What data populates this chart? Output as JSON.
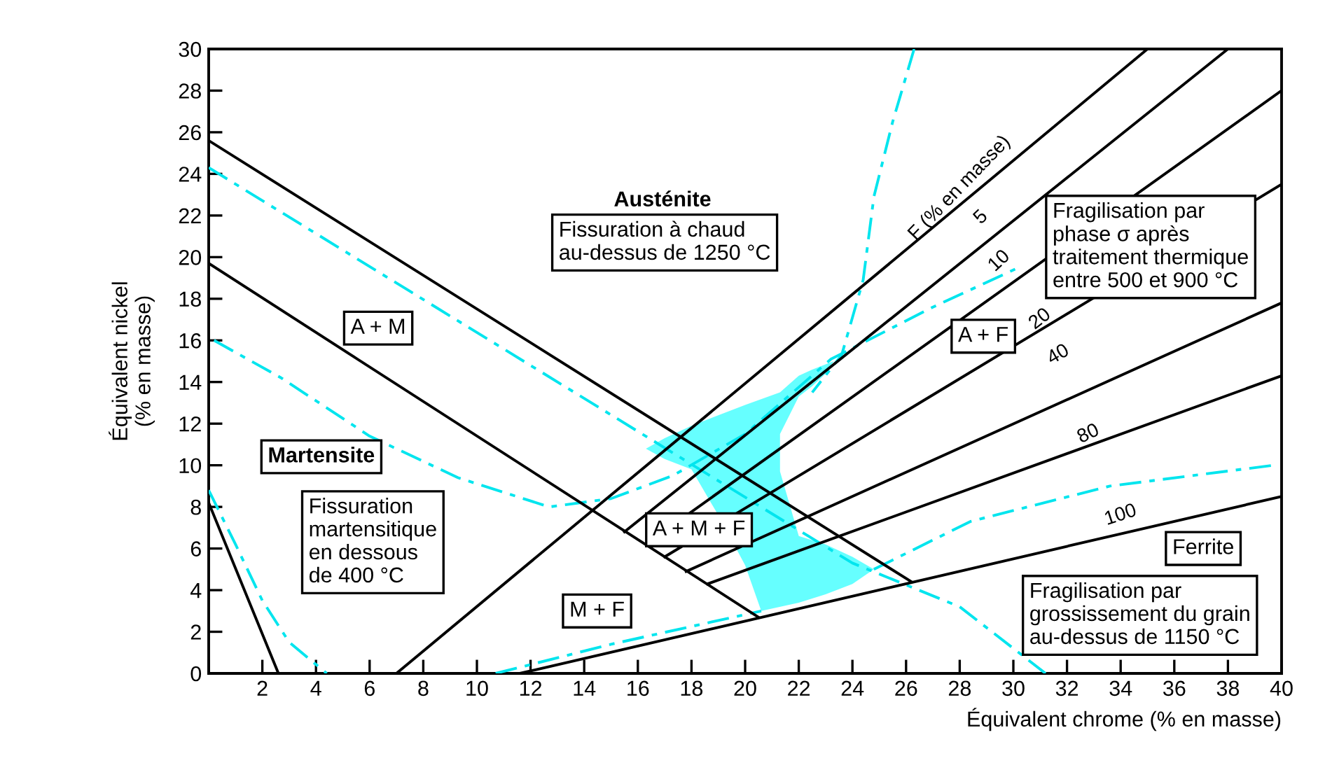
{
  "chart_data": {
    "type": "line",
    "xlabel": "Équivalent chrome (% en masse)",
    "ylabel": "Équivalent nickel\n(% en masse)",
    "xlim": [
      0,
      40
    ],
    "ylim": [
      0,
      30
    ],
    "xticks": [
      {
        "value": 0,
        "label": null
      },
      2,
      4,
      6,
      8,
      10,
      12,
      14,
      16,
      18,
      20,
      22,
      24,
      26,
      28,
      30,
      32,
      34,
      36,
      38,
      40
    ],
    "yticks": [
      0,
      2,
      4,
      6,
      8,
      10,
      12,
      14,
      16,
      18,
      20,
      22,
      24,
      26,
      28,
      30
    ],
    "grid": false,
    "series": [
      {
        "color": "#00e5ee",
        "line_style": "dashed",
        "x": [
          0,
          1,
          2,
          3,
          4.4
        ],
        "values": [
          8.8,
          6.2,
          3.5,
          1.5,
          0
        ]
      },
      {
        "color": "#00e5ee",
        "line_style": "dashed",
        "x": [
          0.2,
          2.7,
          6,
          9.3,
          12.7,
          15,
          17.3,
          20,
          23.2,
          27,
          30.2
        ],
        "values": [
          16.0,
          14.2,
          11.4,
          9.4,
          8.0,
          8.4,
          9.5,
          11.5,
          15.1,
          17.6,
          19.5
        ]
      },
      {
        "color": "#00e5ee",
        "line_style": "dashed",
        "x": [
          0,
          17.3,
          24,
          28,
          31.2
        ],
        "values": [
          24.3,
          10.6,
          5.3,
          3.2,
          0
        ]
      },
      {
        "color": "#00e5ee",
        "line_style": "dashed",
        "x": [
          26.3,
          25.5,
          24.8,
          24.4,
          23.6,
          22.5
        ],
        "values": [
          30,
          26.5,
          22.9,
          18.9,
          15.3,
          13.5
        ]
      },
      {
        "color": "#00e5ee",
        "line_style": "dashed",
        "x": [
          10.7,
          15,
          20.6
        ],
        "values": [
          0,
          1.4,
          3.0
        ]
      },
      {
        "color": "#00e5ee",
        "line_style": "dashed",
        "x": [
          24.8,
          28.4,
          33.6,
          39.7
        ],
        "values": [
          5.0,
          7.3,
          9.0,
          10.0
        ]
      },
      {
        "color": "#000000",
        "x": [
          0,
          26.2
        ],
        "values": [
          25.6,
          4.4
        ]
      },
      {
        "color": "#000000",
        "x": [
          0,
          20.5
        ],
        "values": [
          19.7,
          2.7
        ]
      },
      {
        "color": "#000000",
        "x": [
          0,
          2.6
        ],
        "values": [
          8.2,
          0
        ]
      },
      {
        "color": "#000000",
        "x": [
          7.0,
          35.0
        ],
        "values": [
          0,
          30
        ]
      },
      {
        "color": "#000000",
        "x": [
          11.6,
          40
        ],
        "values": [
          0,
          8.5
        ]
      },
      {
        "color": "#000000",
        "x": [
          15.5,
          38.0
        ],
        "values": [
          6.8,
          30
        ]
      },
      {
        "color": "#000000",
        "x": [
          16.3,
          40
        ],
        "values": [
          6.2,
          28.0
        ]
      },
      {
        "color": "#000000",
        "x": [
          17.0,
          40
        ],
        "values": [
          5.6,
          23.5
        ]
      },
      {
        "color": "#000000",
        "x": [
          17.8,
          40
        ],
        "values": [
          4.9,
          17.8
        ]
      },
      {
        "color": "#000000",
        "x": [
          18.6,
          40
        ],
        "values": [
          4.3,
          14.3
        ]
      }
    ],
    "annotations": [
      "Austénite",
      "Fissuration à chaud\nau-dessus de 1250 °C",
      "A + M",
      "Martensite",
      "Fissuration\nmartensitique\nen dessous\nde 400 °C",
      "M + F",
      "A + M + F",
      "A + F",
      "Fragilisation par\nphase σ après\ntraitement thermique\nentre 500 et 900 °C",
      "Ferrite",
      "Fragilisation par\ngrossissement du grain\nau-dessus de 1150 °C",
      "F (% en masse)",
      "5",
      "10",
      "20",
      "40",
      "80",
      "100"
    ]
  }
}
